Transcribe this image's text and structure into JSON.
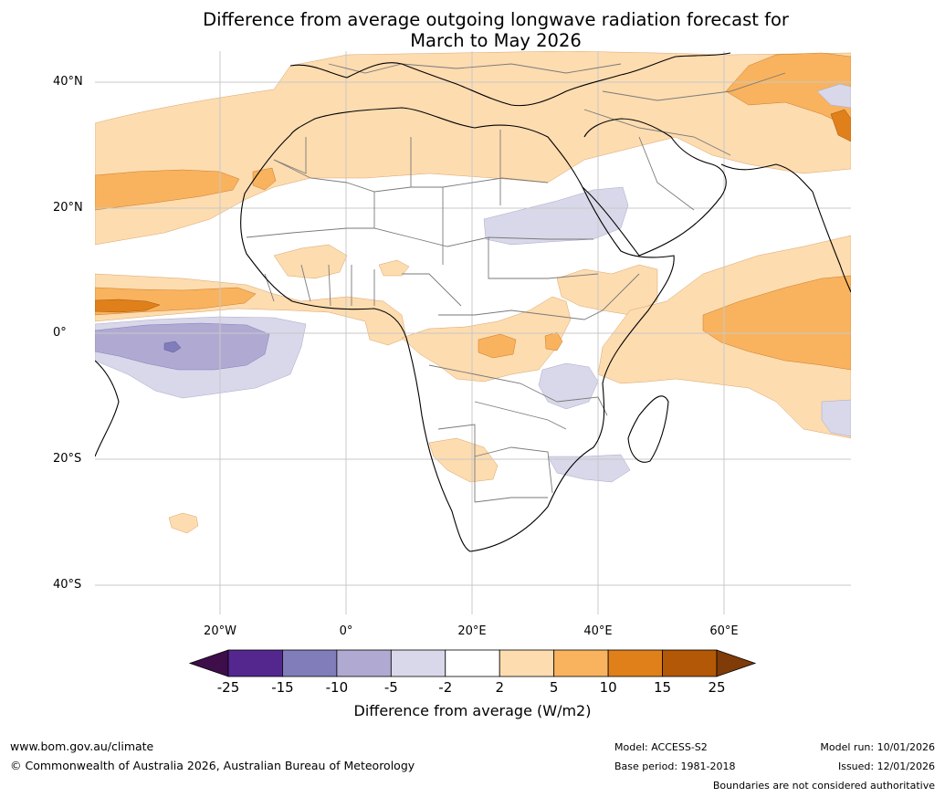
{
  "title_line1": "Difference from average outgoing longwave radiation forecast for",
  "title_line2": "March to May 2026",
  "lat_labels": [
    "40°N",
    "20°N",
    "0°",
    "20°S",
    "40°S"
  ],
  "lon_labels": [
    "20°W",
    "0°",
    "20°E",
    "40°E",
    "60°E"
  ],
  "colorbar": {
    "ticks": [
      "-25",
      "-15",
      "-10",
      "-5",
      "-2",
      "2",
      "5",
      "10",
      "15",
      "25"
    ],
    "colors": [
      "#3d0e4a",
      "#54278f",
      "#807dba",
      "#b0aad2",
      "#d8d8ea",
      "#ffffff",
      "#fddcb0",
      "#f9b35e",
      "#e0801a",
      "#b35806",
      "#7f3b08"
    ],
    "label": "Difference from average (W/m2)"
  },
  "footer": {
    "website": "www.bom.gov.au/climate",
    "copyright": "© Commonwealth of Australia 2026, Australian Bureau of Meteorology",
    "model": "Model: ACCESS-S2",
    "base_period": "Base period: 1981-2018",
    "model_run": "Model run: 10/01/2026",
    "issued": "Issued: 12/01/2026",
    "disclaimer": "Boundaries are not considered authoritative"
  }
}
